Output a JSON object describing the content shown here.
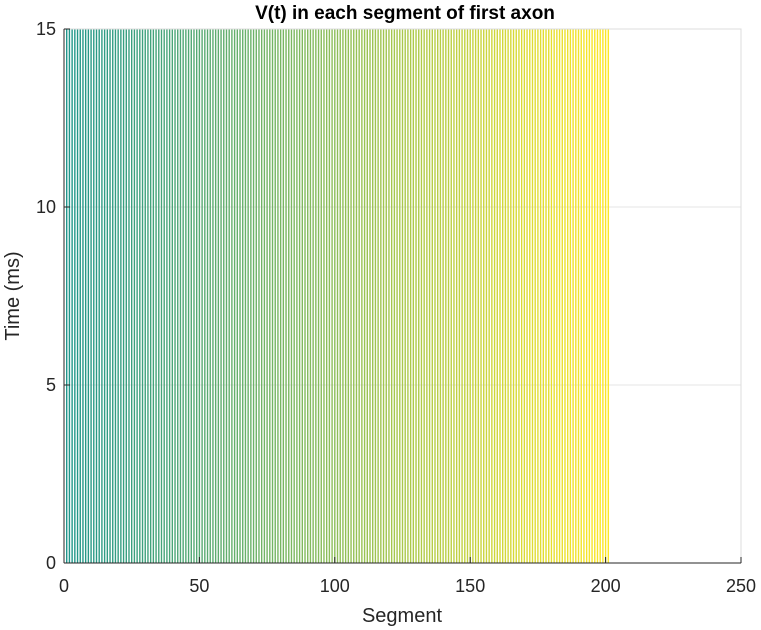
{
  "chart_data": {
    "type": "line",
    "title": "V(t) in each segment of first axon",
    "xlabel": "Segment",
    "ylabel": "Time (ms)",
    "xlim": [
      0,
      250
    ],
    "ylim": [
      0,
      15
    ],
    "xticks": [
      "0",
      "50",
      "100",
      "150",
      "200",
      "250"
    ],
    "yticks": [
      "0",
      "5",
      "10",
      "15"
    ],
    "grid": true,
    "colormap": "viridis",
    "series_count": 201,
    "segment_range": [
      1,
      201
    ],
    "time_range_ms": [
      0,
      15
    ],
    "color_start": "#1f968b",
    "color_end": "#fde725"
  }
}
